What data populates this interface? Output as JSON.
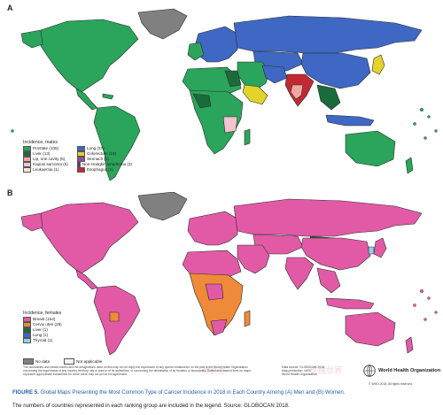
{
  "panels": {
    "a": "A",
    "b": "B"
  },
  "colors": {
    "prostate": "#2aa55b",
    "liver": "#1a6b3c",
    "lip_oral": "#f2a6a0",
    "kaposi": "#f4c2d0",
    "leukaemia": "#f7e8c8",
    "lung": "#3f68c4",
    "colorectum": "#e3d32b",
    "stomach": "#9a4d9a",
    "nhl": "#6c2d8c",
    "oesophagus": "#c22a33",
    "breast": "#e25aa6",
    "cervix": "#ef8a3a",
    "thyroid": "#8fd1e8",
    "no_data": "#808080",
    "na": "#f4f4f4",
    "ocean": "#ffffff",
    "border": "#2b2b2b"
  },
  "legend_males": {
    "title": "Incidence, males",
    "items": [
      {
        "label": "Prostate (105)",
        "color": "#2aa55b"
      },
      {
        "label": "Lung (37)",
        "color": "#3f68c4"
      },
      {
        "label": "Liver (13)",
        "color": "#1a6b3c"
      },
      {
        "label": "Colorectum (10)",
        "color": "#e3d32b"
      },
      {
        "label": "Lip, oral cavity (5)",
        "color": "#f2a6a0"
      },
      {
        "label": "Stomach (5)",
        "color": "#9a4d9a"
      },
      {
        "label": "Kaposi sarcoma (5)",
        "color": "#f4c2d0"
      },
      {
        "label": "Non-Hodgkin lymphoma (3)",
        "color": "#6c2d8c"
      },
      {
        "label": "Leukaemia (1)",
        "color": "#f7e8c8"
      },
      {
        "label": "Esophagus (1)",
        "color": "#c22a33"
      }
    ]
  },
  "legend_females": {
    "title": "Incidence, females",
    "items": [
      {
        "label": "Breast (154)",
        "color": "#e25aa6"
      },
      {
        "label": "Cervix uteri (28)",
        "color": "#ef8a3a"
      },
      {
        "label": "Liver (1)",
        "color": "#1a6b3c"
      },
      {
        "label": "Lung (1)",
        "color": "#3f68c4"
      },
      {
        "label": "Thyroid (1)",
        "color": "#8fd1e8"
      }
    ]
  },
  "no_data": {
    "label": "No data",
    "na_label": "Not applicable"
  },
  "disclaimer": "The boundaries and names shown and the designations used on this map do not imply the expression of any opinion whatsoever on the part of the World Health Organization concerning the legal status of any country, territory, city or area or of its authorities, or concerning the delimitation of its frontiers or boundaries. Dotted and dashed lines on maps represent approximate borderlines for which there may not yet be full agreement.",
  "source": {
    "line1": "Data source: GLOBOCAN 2018",
    "line2": "Map production: IARC",
    "line3": "World Health Organization"
  },
  "who": {
    "name": "World Health Organization",
    "copyright": "© WHO 2018. All rights reserved"
  },
  "caption": {
    "label": "FIGURE 5.",
    "text": "Global Maps Presenting the Most Common Type of Cancer Incidence in 2018 in Each Country Among (A) Men and (B) Women.",
    "note": "The numbers of countries represented in each ranking group are included in the legend. Source: GLOBOCAN 2018."
  },
  "watermarks": {
    "left": "肿医生",
    "right": "医械世界"
  }
}
